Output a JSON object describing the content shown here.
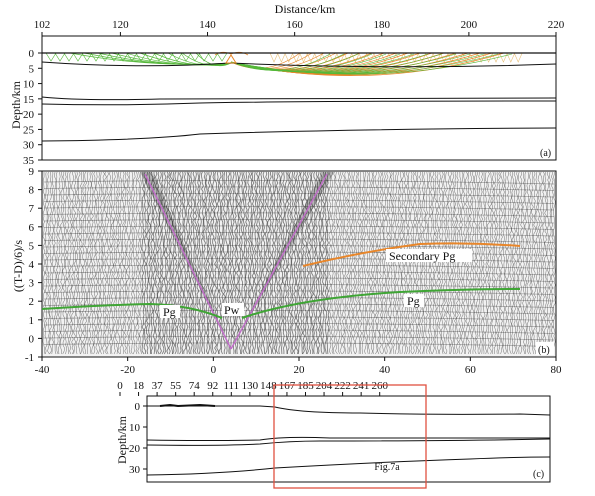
{
  "panel_a": {
    "top_axis_title": "Distance/km",
    "top_ticks": [
      "102",
      "120",
      "140",
      "160",
      "180",
      "200",
      "220"
    ],
    "y_label": "Depth/km",
    "y_ticks": [
      "0",
      "5",
      "10",
      "15",
      "20",
      "25",
      "30",
      "35"
    ],
    "panel_label": "(a)",
    "colors": {
      "green": "#55b83a",
      "orange": "#e8862a",
      "tan": "#e8c07a"
    }
  },
  "panel_b": {
    "y_label": "((T-D)/6)/s",
    "y_ticks": [
      "9",
      "8",
      "7",
      "6",
      "5",
      "4",
      "3",
      "2",
      "1",
      "0",
      "-1"
    ],
    "x_ticks": [
      "-40",
      "-20",
      "0",
      "20",
      "40",
      "60",
      "80"
    ],
    "labels": {
      "pg_left": "Pg",
      "pw": "Pw",
      "secondary_pg": "Secondary Pg",
      "pg_right": "Pg"
    },
    "panel_label": "(b)",
    "colors": {
      "green_pick": "#3fa535",
      "orange_pick": "#e8862a",
      "pink_pick": "#c06fc8"
    }
  },
  "panel_c": {
    "top_ticks": [
      "0",
      "18",
      "37",
      "55",
      "74",
      "92",
      "111",
      "130",
      "148",
      "167",
      "185",
      "204",
      "222",
      "241",
      "260"
    ],
    "y_label": "Depth/km",
    "y_ticks": [
      "0",
      "10",
      "20",
      "30"
    ],
    "box_label": "Fig.7a",
    "panel_label": "(c)",
    "box_color": "#e05040"
  }
}
